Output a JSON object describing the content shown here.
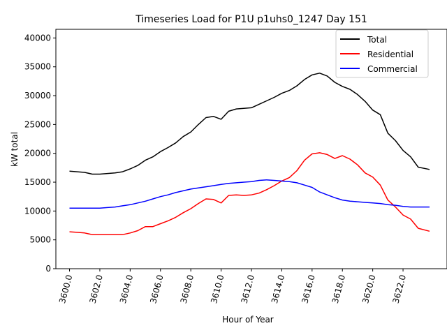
{
  "chart_data": {
    "type": "line",
    "title": "Timeseries Load for P1U p1uhs0_1247  Day 151",
    "xlabel": "Hour of Year",
    "ylabel": "kW total",
    "xlim": [
      3599.1,
      3624.9
    ],
    "ylim": [
      0,
      41500
    ],
    "grid": false,
    "legend_position": "top-right",
    "x_ticks": [
      3600,
      3602,
      3604,
      3606,
      3608,
      3610,
      3612,
      3614,
      3616,
      3618,
      3620,
      3622
    ],
    "x_tick_labels": [
      "3600.0",
      "3602.0",
      "3604.0",
      "3606.0",
      "3608.0",
      "3610.0",
      "3612.0",
      "3614.0",
      "3616.0",
      "3618.0",
      "3620.0",
      "3622.0"
    ],
    "y_ticks": [
      0,
      5000,
      10000,
      15000,
      20000,
      25000,
      30000,
      35000,
      40000
    ],
    "y_tick_labels": [
      "0",
      "5000",
      "10000",
      "15000",
      "20000",
      "25000",
      "30000",
      "35000",
      "40000"
    ],
    "x": [
      3600,
      3600.5,
      3601,
      3601.5,
      3602,
      3602.5,
      3603,
      3603.5,
      3604,
      3604.5,
      3605,
      3605.5,
      3606,
      3606.5,
      3607,
      3607.5,
      3608,
      3608.5,
      3609,
      3609.5,
      3610,
      3610.5,
      3611,
      3611.5,
      3612,
      3612.5,
      3613,
      3613.5,
      3614,
      3614.5,
      3615,
      3615.5,
      3616,
      3616.5,
      3617,
      3617.5,
      3618,
      3618.5,
      3619,
      3619.5,
      3620,
      3620.5,
      3621,
      3621.5,
      3622,
      3622.5,
      3623,
      3623.75
    ],
    "series": [
      {
        "name": "Total",
        "color": "#000000",
        "values": [
          16900,
          16800,
          16700,
          16400,
          16400,
          16500,
          16600,
          16800,
          17300,
          17900,
          18800,
          19400,
          20300,
          21000,
          21800,
          22900,
          23700,
          25000,
          26200,
          26400,
          25900,
          27300,
          27700,
          27800,
          27900,
          28500,
          29100,
          29700,
          30400,
          30900,
          31700,
          32800,
          33600,
          33900,
          33400,
          32300,
          31600,
          31100,
          30200,
          29000,
          27500,
          26700,
          23500,
          22200,
          20500,
          19400,
          17600,
          17200
        ]
      },
      {
        "name": "Residential",
        "color": "#ff0000",
        "values": [
          6400,
          6300,
          6200,
          5900,
          5900,
          5900,
          5900,
          5900,
          6200,
          6600,
          7300,
          7300,
          7800,
          8300,
          8900,
          9700,
          10400,
          11300,
          12100,
          12000,
          11400,
          12700,
          12800,
          12700,
          12800,
          13100,
          13700,
          14400,
          15200,
          15800,
          17000,
          18800,
          19900,
          20100,
          19800,
          19100,
          19600,
          19000,
          18000,
          16600,
          15900,
          14500,
          11900,
          10700,
          9300,
          8600,
          7000,
          6500
        ]
      },
      {
        "name": "Commercial",
        "color": "#0000ff",
        "values": [
          10500,
          10500,
          10500,
          10500,
          10500,
          10600,
          10700,
          10900,
          11100,
          11400,
          11700,
          12100,
          12500,
          12800,
          13200,
          13500,
          13800,
          14000,
          14200,
          14400,
          14600,
          14800,
          14900,
          15000,
          15100,
          15300,
          15400,
          15300,
          15200,
          15100,
          14900,
          14500,
          14100,
          13300,
          12800,
          12300,
          11900,
          11700,
          11600,
          11500,
          11400,
          11300,
          11100,
          11000,
          10800,
          10700,
          10700,
          10700
        ]
      }
    ]
  }
}
